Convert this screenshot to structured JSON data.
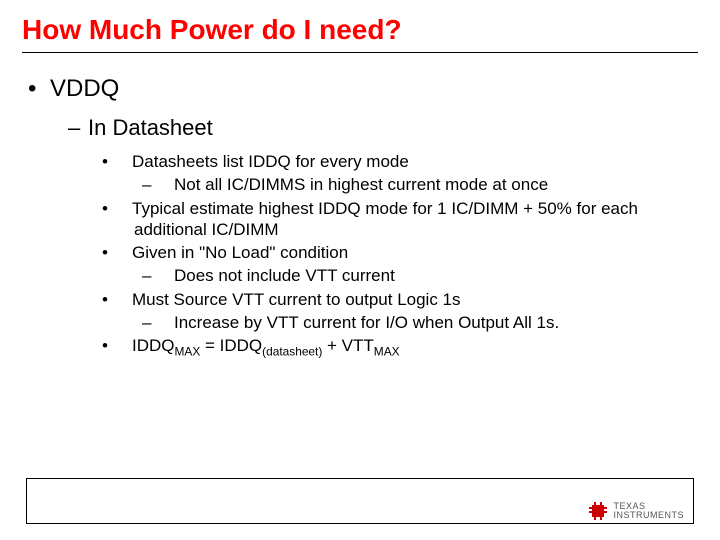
{
  "title": "How Much Power do I need?",
  "level1": {
    "bullet": "•",
    "text": "VDDQ"
  },
  "level2": {
    "bullet": "–",
    "text": "In Datasheet"
  },
  "items": [
    {
      "type": "l3",
      "bullet": "•",
      "text": "Datasheets list IDDQ for every mode"
    },
    {
      "type": "l4",
      "bullet": "–",
      "text": "Not all IC/DIMMS in highest current mode at once"
    },
    {
      "type": "l3",
      "bullet": "•",
      "text": "Typical estimate highest IDDQ mode for 1 IC/DIMM + 50% for each additional IC/DIMM"
    },
    {
      "type": "l3",
      "bullet": "•",
      "text": "Given in \"No Load\" condition"
    },
    {
      "type": "l4",
      "bullet": "–",
      "text": "Does not include VTT current"
    },
    {
      "type": "l3",
      "bullet": "•",
      "text": "Must Source VTT current to output Logic 1s"
    },
    {
      "type": "l4",
      "bullet": "–",
      "text": "Increase by VTT current for I/O when Output All 1s."
    }
  ],
  "formula": {
    "bullet": "•",
    "parts": [
      {
        "t": "IDDQ"
      },
      {
        "t": "MAX",
        "sub": true
      },
      {
        "t": " = IDDQ"
      },
      {
        "t": "(datasheet)",
        "sub": true
      },
      {
        "t": " + VTT"
      },
      {
        "t": "MAX",
        "sub": true
      }
    ]
  },
  "logo": {
    "line1": "TEXAS",
    "line2": "INSTRUMENTS",
    "chip_color": "#cc0000"
  },
  "colors": {
    "title": "#ff0000",
    "text": "#000000",
    "background": "#ffffff"
  }
}
